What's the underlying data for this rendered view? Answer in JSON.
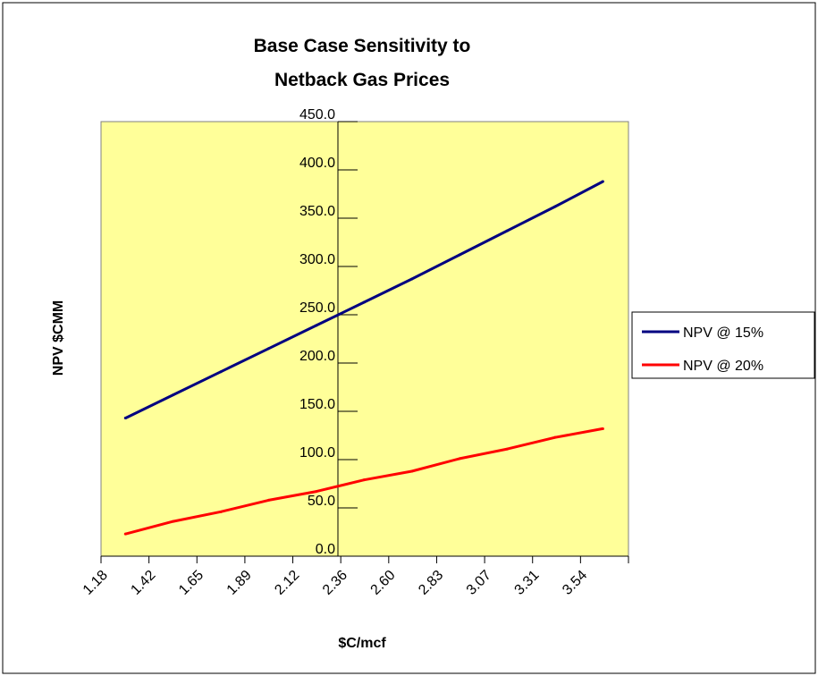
{
  "chart_data": {
    "type": "line",
    "title_lines": [
      "Base Case Sensitivity to",
      "Netback Gas Prices"
    ],
    "xlabel": "$C/mcf",
    "ylabel": "NPV  $CMM",
    "ylim": [
      0,
      450
    ],
    "y_ticks": [
      "0.0",
      "50.0",
      "100.0",
      "150.0",
      "200.0",
      "250.0",
      "300.0",
      "350.0",
      "400.0",
      "450.0"
    ],
    "x_ticks": [
      "1.18",
      "1.42",
      "1.65",
      "1.89",
      "2.12",
      "2.36",
      "2.60",
      "2.83",
      "3.07",
      "3.31",
      "3.54"
    ],
    "x": [
      1.3,
      1.535,
      1.77,
      2.005,
      2.24,
      2.475,
      2.71,
      2.945,
      3.18,
      3.415,
      3.65
    ],
    "series": [
      {
        "name": "NPV  @ 15%",
        "color": "#000080",
        "values": [
          143,
          167,
          191,
          215,
          239,
          263,
          287,
          312,
          337,
          362,
          388
        ]
      },
      {
        "name": "NPV  @ 20%",
        "color": "#ff0000",
        "values": [
          23,
          36,
          46,
          58,
          67,
          79,
          88,
          101,
          111,
          123,
          132
        ]
      }
    ],
    "plot_background": "#ffff99",
    "grid": false,
    "legend_position": "right"
  }
}
